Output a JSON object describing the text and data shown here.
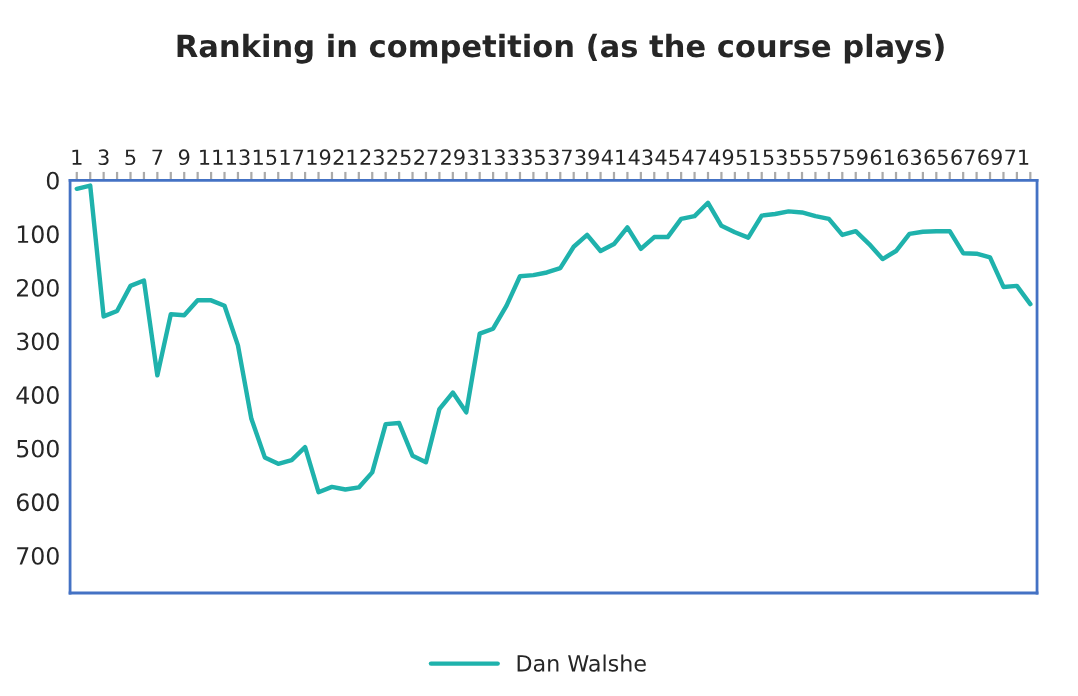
{
  "chart_data": {
    "type": "line",
    "title": "Ranking in competition (as the course plays)",
    "categories": [
      "1",
      null,
      "3",
      null,
      "5",
      null,
      "7",
      null,
      "9",
      null,
      "11",
      null,
      "13",
      null,
      "15",
      null,
      "17",
      null,
      "19",
      null,
      "21",
      null,
      "23",
      null,
      "25",
      null,
      "27",
      null,
      "29",
      null,
      "31",
      null,
      "33",
      null,
      "35",
      null,
      "37",
      null,
      "39",
      null,
      "41",
      null,
      "43",
      null,
      "45",
      null,
      "47",
      null,
      "49",
      null,
      "51",
      null,
      "53",
      null,
      "55",
      null,
      "57",
      null,
      "59",
      null,
      "61",
      null,
      "63",
      null,
      "65",
      null,
      "67",
      null,
      "69",
      null,
      "71",
      null
    ],
    "series": [
      {
        "name": "Dan Walshe",
        "color": "#1fb2ac",
        "values": [
          16,
          10,
          254,
          244,
          197,
          187,
          364,
          250,
          252,
          224,
          224,
          234,
          308,
          445,
          517,
          529,
          522,
          498,
          582,
          572,
          577,
          573,
          545,
          455,
          453,
          514,
          526,
          427,
          396,
          433,
          286,
          277,
          234,
          179,
          177,
          172,
          164,
          124,
          102,
          132,
          119,
          88,
          128,
          106,
          106,
          72,
          67,
          42,
          85,
          97,
          107,
          66,
          63,
          58,
          60,
          67,
          72,
          102,
          95,
          119,
          147,
          132,
          100,
          96,
          95,
          95,
          136,
          137,
          144,
          199,
          197,
          231
        ]
      }
    ],
    "ylim": [
      770,
      0
    ],
    "yticks": [
      0,
      100,
      200,
      300,
      400,
      500,
      600,
      700
    ],
    "legend": "bottom",
    "grid": false,
    "marker": "none",
    "line_style": "solid"
  }
}
